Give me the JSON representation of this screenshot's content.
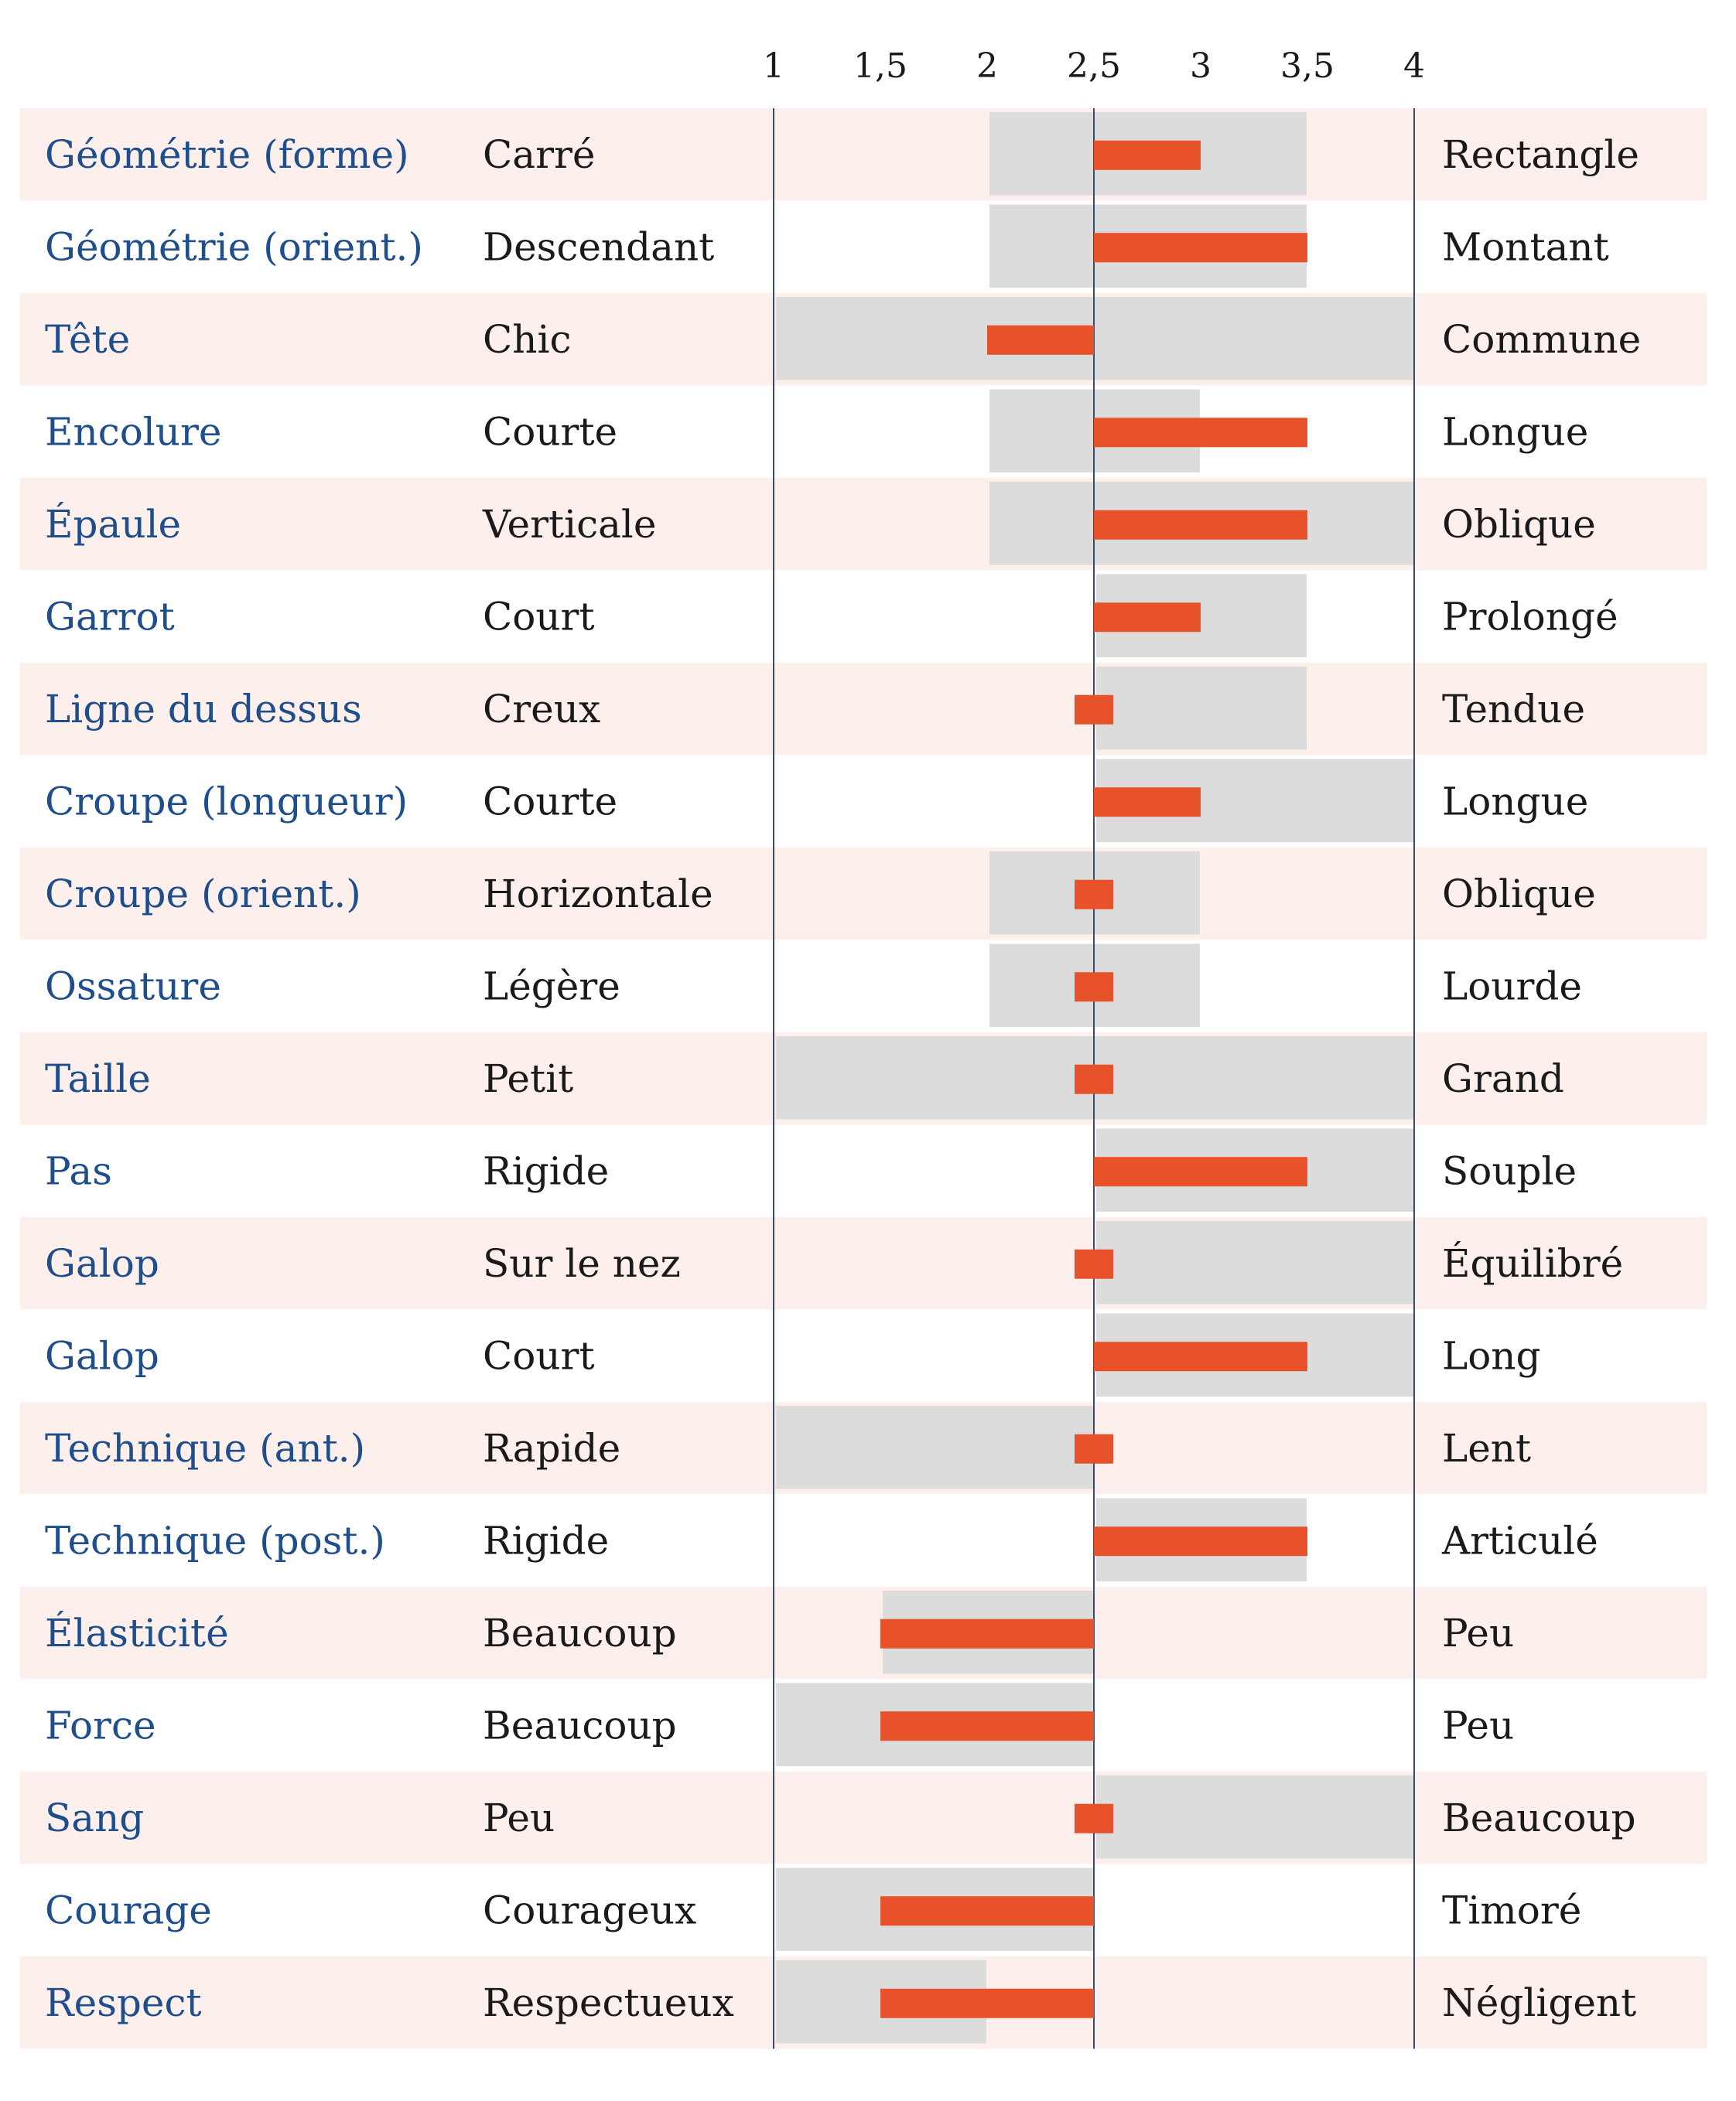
{
  "chart_data": {
    "type": "bar",
    "xlim": [
      1,
      4
    ],
    "x_ticks": [
      {
        "value": 1,
        "label": "1"
      },
      {
        "value": 1.5,
        "label": "1,5"
      },
      {
        "value": 2,
        "label": "2"
      },
      {
        "value": 2.5,
        "label": "2,5"
      },
      {
        "value": 3,
        "label": "3"
      },
      {
        "value": 3.5,
        "label": "3,5"
      },
      {
        "value": 4,
        "label": "4"
      }
    ],
    "center": 2.5,
    "grid": false,
    "colors": {
      "label": "#1f4e8c",
      "bar": "#e8522a",
      "range": "#dcdcdc",
      "row_shade": "#fdf0ec",
      "axis": "#3a4a6b"
    },
    "rows": [
      {
        "name": "Géométrie (forme)",
        "low_label": "Carré",
        "high_label": "Rectangle",
        "value": 3,
        "range": [
          2,
          3.5
        ]
      },
      {
        "name": "Géométrie (orient.)",
        "low_label": "Descendant",
        "high_label": "Montant",
        "value": 3.5,
        "range": [
          2,
          3.5
        ]
      },
      {
        "name": "Tête",
        "low_label": "Chic",
        "high_label": "Commune",
        "value": 2,
        "range": [
          1,
          4
        ]
      },
      {
        "name": "Encolure",
        "low_label": "Courte",
        "high_label": "Longue",
        "value": 3.5,
        "range": [
          2,
          3
        ]
      },
      {
        "name": "Épaule",
        "low_label": "Verticale",
        "high_label": "Oblique",
        "value": 3.5,
        "range": [
          2,
          4
        ]
      },
      {
        "name": "Garrot",
        "low_label": "Court",
        "high_label": "Prolongé",
        "value": 3,
        "range": [
          2.5,
          3.5
        ]
      },
      {
        "name": "Ligne du dessus",
        "low_label": "Creux",
        "high_label": "Tendue",
        "value": 2.5,
        "range": [
          2.5,
          3.5
        ]
      },
      {
        "name": "Croupe (longueur)",
        "low_label": "Courte",
        "high_label": "Longue",
        "value": 3,
        "range": [
          2.5,
          4
        ]
      },
      {
        "name": "Croupe (orient.)",
        "low_label": "Horizontale",
        "high_label": "Oblique",
        "value": 2.5,
        "range": [
          2,
          3
        ]
      },
      {
        "name": "Ossature",
        "low_label": "Légère",
        "high_label": "Lourde",
        "value": 2.5,
        "range": [
          2,
          3
        ]
      },
      {
        "name": "Taille",
        "low_label": "Petit",
        "high_label": "Grand",
        "value": 2.5,
        "range": [
          1,
          4
        ]
      },
      {
        "name": "Pas",
        "low_label": "Rigide",
        "high_label": "Souple",
        "value": 3.5,
        "range": [
          2.5,
          4
        ]
      },
      {
        "name": "Galop",
        "low_label": "Sur le nez",
        "high_label": "Équilibré",
        "value": 2.5,
        "range": [
          2.5,
          4
        ]
      },
      {
        "name": "Galop",
        "low_label": "Court",
        "high_label": "Long",
        "value": 3.5,
        "range": [
          2.5,
          4
        ]
      },
      {
        "name": "Technique (ant.)",
        "low_label": "Rapide",
        "high_label": "Lent",
        "value": 2.5,
        "range": [
          1,
          2.5
        ]
      },
      {
        "name": "Technique (post.)",
        "low_label": "Rigide",
        "high_label": "Articulé",
        "value": 3.5,
        "range": [
          2.5,
          3.5
        ]
      },
      {
        "name": "Élasticité",
        "low_label": "Beaucoup",
        "high_label": "Peu",
        "value": 1.5,
        "range": [
          1.5,
          2.5
        ]
      },
      {
        "name": "Force",
        "low_label": "Beaucoup",
        "high_label": "Peu",
        "value": 1.5,
        "range": [
          1,
          2.5
        ]
      },
      {
        "name": "Sang",
        "low_label": "Peu",
        "high_label": "Beaucoup",
        "value": 2.5,
        "range": [
          2.5,
          4
        ]
      },
      {
        "name": "Courage",
        "low_label": "Courageux",
        "high_label": "Timoré",
        "value": 1.5,
        "range": [
          1,
          2.5
        ]
      },
      {
        "name": "Respect",
        "low_label": "Respectueux",
        "high_label": "Négligent",
        "value": 1.5,
        "range": [
          1,
          2
        ]
      }
    ]
  }
}
